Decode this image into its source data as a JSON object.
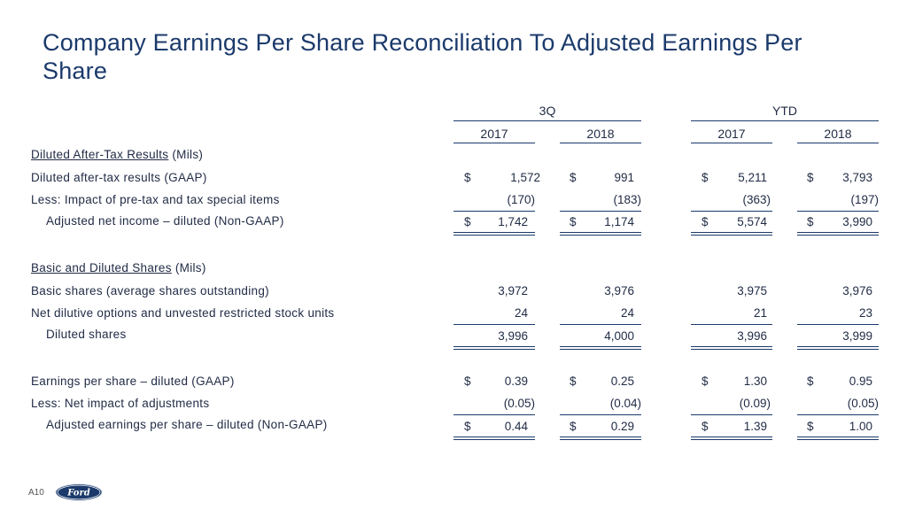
{
  "title": "Company Earnings Per Share Reconciliation To Adjusted Earnings Per Share",
  "periods": {
    "q": "3Q",
    "ytd": "YTD"
  },
  "years": [
    "2017",
    "2018",
    "2017",
    "2018"
  ],
  "sections": {
    "after_tax": {
      "heading": "Diluted After-Tax Results",
      "unit": "(Mils)"
    },
    "shares": {
      "heading": "Basic and Diluted Shares",
      "unit": "(Mils)"
    }
  },
  "currency": "$",
  "rows": [
    {
      "label": "Diluted after-tax results (GAAP)",
      "values": [
        "1,572",
        "991",
        "5,211",
        "3,793"
      ]
    },
    {
      "label": "Less:  Impact of pre-tax and tax special items",
      "values": [
        "(170)",
        "(183)",
        "(363)",
        "(197)"
      ]
    },
    {
      "label": "Adjusted net income – diluted (Non-GAAP)",
      "values": [
        "1,742",
        "1,174",
        "5,574",
        "3,990"
      ]
    },
    {
      "label": "Basic shares (average shares outstanding)",
      "values": [
        "3,972",
        "3,976",
        "3,975",
        "3,976"
      ]
    },
    {
      "label": "Net dilutive options and unvested restricted stock units",
      "values": [
        "24",
        "24",
        "21",
        "23"
      ]
    },
    {
      "label": "Diluted shares",
      "values": [
        "3,996",
        "4,000",
        "3,996",
        "3,999"
      ]
    },
    {
      "label": "Earnings per share – diluted (GAAP)",
      "values": [
        "0.39",
        "0.25",
        "1.30",
        "0.95"
      ]
    },
    {
      "label": "Less:  Net impact of adjustments",
      "values": [
        "(0.05)",
        "(0.04)",
        "(0.09)",
        "(0.05)"
      ]
    },
    {
      "label": "Adjusted earnings per share – diluted (Non-GAAP)",
      "values": [
        "0.44",
        "0.29",
        "1.39",
        "1.00"
      ]
    }
  ],
  "footer": {
    "page": "A10",
    "logo_text": "Ford"
  }
}
